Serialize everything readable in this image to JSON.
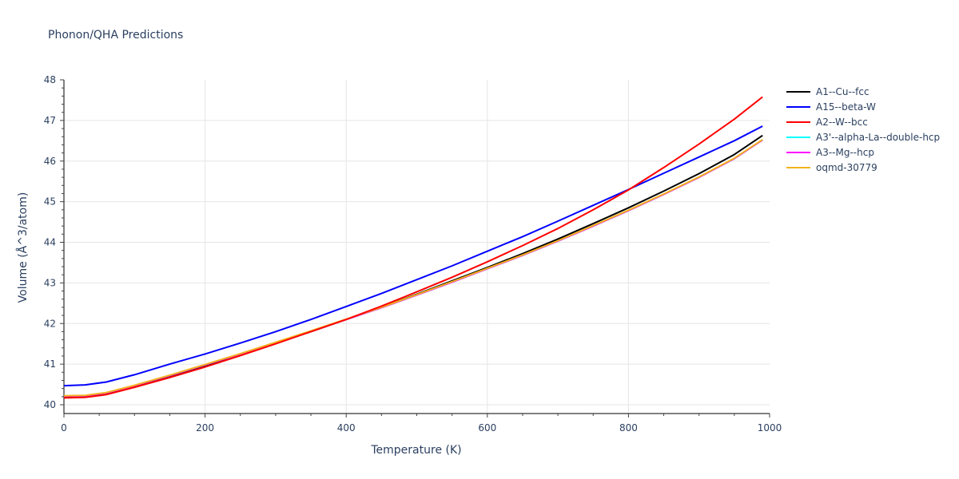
{
  "title": "Phonon/QHA Predictions",
  "chart_data": {
    "type": "line",
    "title": "Phonon/QHA Predictions",
    "xlabel": "Temperature (K)",
    "ylabel": "Volume (Å^3/atom)",
    "xlim": [
      0,
      1000
    ],
    "ylim": [
      39.8,
      48
    ],
    "xticks": [
      0,
      200,
      400,
      600,
      800,
      1000
    ],
    "yticks": [
      40,
      41,
      42,
      43,
      44,
      45,
      46,
      47,
      48
    ],
    "grid": true,
    "legend_position": "right",
    "x": [
      0,
      30,
      60,
      100,
      150,
      200,
      250,
      300,
      350,
      400,
      450,
      500,
      550,
      600,
      650,
      700,
      750,
      800,
      850,
      900,
      950,
      990
    ],
    "series": [
      {
        "name": "A1--Cu--fcc",
        "color": "#000000",
        "values": [
          40.2,
          40.21,
          40.28,
          40.45,
          40.7,
          40.96,
          41.24,
          41.52,
          41.8,
          42.1,
          42.4,
          42.72,
          43.05,
          43.38,
          43.72,
          44.08,
          44.46,
          44.85,
          45.26,
          45.69,
          46.16,
          46.63
        ]
      },
      {
        "name": "A15--beta-W",
        "color": "#0000ff",
        "values": [
          40.47,
          40.49,
          40.56,
          40.74,
          41.0,
          41.25,
          41.52,
          41.8,
          42.1,
          42.42,
          42.74,
          43.08,
          43.42,
          43.78,
          44.14,
          44.52,
          44.91,
          45.3,
          45.7,
          46.1,
          46.5,
          46.86
        ]
      },
      {
        "name": "A2--W--bcc",
        "color": "#ff0000",
        "values": [
          40.17,
          40.18,
          40.25,
          40.43,
          40.67,
          40.93,
          41.21,
          41.5,
          41.8,
          42.1,
          42.43,
          42.78,
          43.14,
          43.52,
          43.92,
          44.34,
          44.8,
          45.29,
          45.84,
          46.42,
          47.03,
          47.58
        ]
      },
      {
        "name": "A3'--alpha-La--double-hcp",
        "color": "#00ffff",
        "values": [
          40.21,
          40.22,
          40.29,
          40.47,
          40.72,
          40.98,
          41.25,
          41.53,
          41.81,
          42.1,
          42.39,
          42.7,
          43.02,
          43.35,
          43.68,
          44.03,
          44.4,
          44.78,
          45.18,
          45.6,
          46.06,
          46.52
        ]
      },
      {
        "name": "A3--Mg--hcp",
        "color": "#ff00ff",
        "values": [
          40.21,
          40.22,
          40.29,
          40.47,
          40.72,
          40.98,
          41.25,
          41.53,
          41.81,
          42.1,
          42.39,
          42.7,
          43.02,
          43.35,
          43.68,
          44.03,
          44.4,
          44.78,
          45.18,
          45.6,
          46.06,
          46.52
        ]
      },
      {
        "name": "oqmd-30779",
        "color": "#f2b21d",
        "values": [
          40.22,
          40.23,
          40.3,
          40.48,
          40.73,
          40.99,
          41.26,
          41.54,
          41.82,
          42.11,
          42.4,
          42.71,
          43.03,
          43.36,
          43.69,
          44.04,
          44.41,
          44.79,
          45.19,
          45.61,
          46.07,
          46.53
        ]
      }
    ]
  },
  "axes": {
    "x_title": "Temperature (K)",
    "y_title": "Volume (Å^3/atom)",
    "x_tick_labels": [
      "0",
      "200",
      "400",
      "600",
      "800",
      "1000"
    ],
    "y_tick_labels": [
      "40",
      "41",
      "42",
      "43",
      "44",
      "45",
      "46",
      "47",
      "48"
    ]
  },
  "legend": [
    {
      "label": "A1--Cu--fcc",
      "color": "#000000"
    },
    {
      "label": "A15--beta-W",
      "color": "#0000ff"
    },
    {
      "label": "A2--W--bcc",
      "color": "#ff0000"
    },
    {
      "label": "A3'--alpha-La--double-hcp",
      "color": "#00ffff"
    },
    {
      "label": "A3--Mg--hcp",
      "color": "#ff00ff"
    },
    {
      "label": "oqmd-30779",
      "color": "#f2b21d"
    }
  ]
}
